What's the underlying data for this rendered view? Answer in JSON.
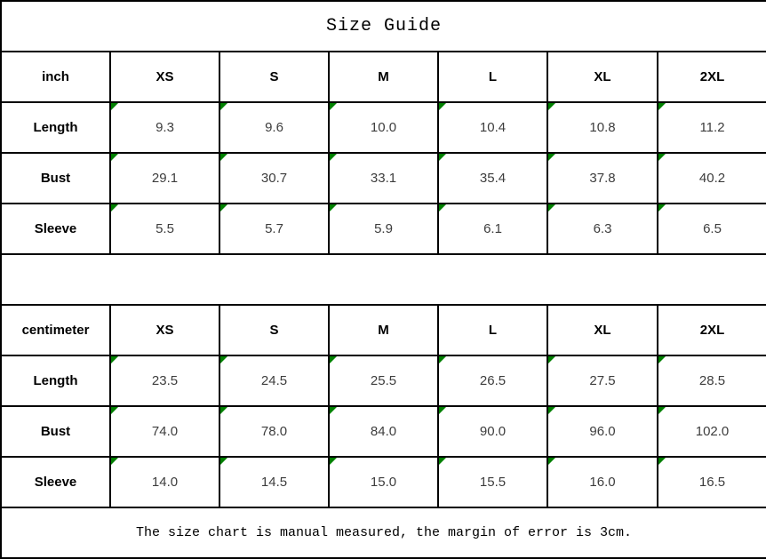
{
  "title": "Size Guide",
  "footer_note": "The size chart is manual measured, the margin of error is 3cm.",
  "colors": {
    "border": "#000000",
    "flag_green": "#008000",
    "value_text": "#3d3d3d",
    "background": "#ffffff"
  },
  "tables": [
    {
      "unit": "inch",
      "sizes": [
        "XS",
        "S",
        "M",
        "L",
        "XL",
        "2XL"
      ],
      "rows": [
        {
          "label": "Length",
          "values": [
            "9.3",
            "9.6",
            "10.0",
            "10.4",
            "10.8",
            "11.2"
          ]
        },
        {
          "label": "Bust",
          "values": [
            "29.1",
            "30.7",
            "33.1",
            "35.4",
            "37.8",
            "40.2"
          ]
        },
        {
          "label": "Sleeve",
          "values": [
            "5.5",
            "5.7",
            "5.9",
            "6.1",
            "6.3",
            "6.5"
          ]
        }
      ]
    },
    {
      "unit": "centimeter",
      "sizes": [
        "XS",
        "S",
        "M",
        "L",
        "XL",
        "2XL"
      ],
      "rows": [
        {
          "label": "Length",
          "values": [
            "23.5",
            "24.5",
            "25.5",
            "26.5",
            "27.5",
            "28.5"
          ]
        },
        {
          "label": "Bust",
          "values": [
            "74.0",
            "78.0",
            "84.0",
            "90.0",
            "96.0",
            "102.0"
          ]
        },
        {
          "label": "Sleeve",
          "values": [
            "14.0",
            "14.5",
            "15.0",
            "15.5",
            "16.0",
            "16.5"
          ]
        }
      ]
    }
  ],
  "chart_data": [
    {
      "type": "table",
      "title": "Size Guide",
      "unit": "inch",
      "columns": [
        "inch",
        "XS",
        "S",
        "M",
        "L",
        "XL",
        "2XL"
      ],
      "rows": [
        [
          "Length",
          9.3,
          9.6,
          10.0,
          10.4,
          10.8,
          11.2
        ],
        [
          "Bust",
          29.1,
          30.7,
          33.1,
          35.4,
          37.8,
          40.2
        ],
        [
          "Sleeve",
          5.5,
          5.7,
          5.9,
          6.1,
          6.3,
          6.5
        ]
      ]
    },
    {
      "type": "table",
      "title": "Size Guide",
      "unit": "centimeter",
      "columns": [
        "centimeter",
        "XS",
        "S",
        "M",
        "L",
        "XL",
        "2XL"
      ],
      "rows": [
        [
          "Length",
          23.5,
          24.5,
          25.5,
          26.5,
          27.5,
          28.5
        ],
        [
          "Bust",
          74.0,
          78.0,
          84.0,
          90.0,
          96.0,
          102.0
        ],
        [
          "Sleeve",
          14.0,
          14.5,
          15.0,
          15.5,
          16.0,
          16.5
        ]
      ],
      "note": "The size chart is manual measured, the margin of error is 3cm."
    }
  ]
}
